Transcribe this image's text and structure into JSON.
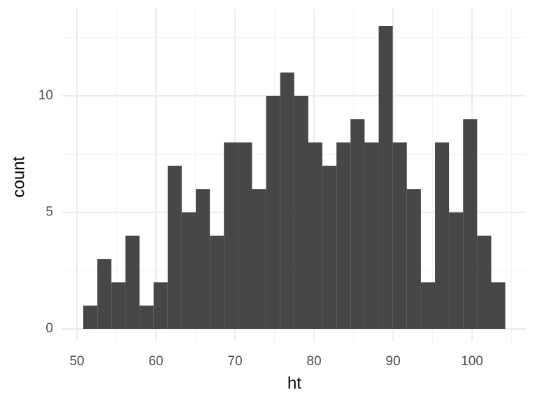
{
  "chart_data": {
    "type": "histogram",
    "x_label": "ht",
    "y_label": "count",
    "bins": [
      50.8,
      52.58,
      54.36,
      56.14,
      57.92,
      59.7,
      61.48,
      63.26,
      65.04,
      66.82,
      68.6,
      70.38,
      72.16,
      73.94,
      75.72,
      77.5,
      79.28,
      81.06,
      82.84,
      84.62,
      86.4,
      88.18,
      89.96,
      91.74,
      93.52,
      95.3,
      97.08,
      98.86,
      100.64,
      102.42,
      104.2
    ],
    "values": [
      1,
      3,
      2,
      4,
      1,
      2,
      7,
      5,
      6,
      4,
      8,
      8,
      6,
      10,
      11,
      10,
      8,
      7,
      8,
      9,
      8,
      13,
      8,
      6,
      2,
      8,
      5,
      9,
      4,
      2
    ],
    "color": "#474747",
    "xlim": [
      48.05,
      106.8
    ],
    "ylim": [
      -0.54,
      13.75
    ],
    "xticks": [
      50,
      60,
      70,
      80,
      90,
      100
    ],
    "yticks": [
      0,
      5,
      10
    ],
    "x_minor_ticks": [
      55,
      65,
      75,
      85,
      95,
      105
    ],
    "y_minor_ticks": [
      2.5,
      7.5,
      12.5
    ],
    "grid": true
  }
}
